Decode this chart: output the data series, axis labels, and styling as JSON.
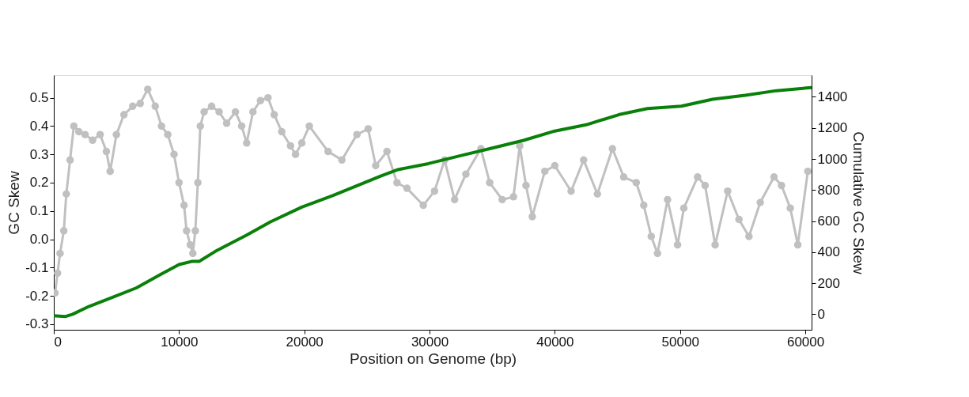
{
  "chart_data": {
    "type": "line",
    "xlabel": "Position on Genome (bp)",
    "ylabel": "GC Skew",
    "y2label": "Cumulative GC Skew",
    "xlim": [
      0,
      60500
    ],
    "xticks": [
      0,
      10000,
      20000,
      30000,
      40000,
      50000,
      60000
    ],
    "ylim": [
      -0.32,
      0.58
    ],
    "yticks": [
      -0.3,
      -0.2,
      -0.1,
      {
        "value": 0,
        "label": "0.0"
      },
      0.1,
      0.2,
      0.3,
      0.4,
      0.5
    ],
    "y2lim": [
      -100,
      1540
    ],
    "y2ticks": [
      0,
      200,
      400,
      600,
      800,
      1000,
      1200,
      1400
    ],
    "grid": false,
    "series": [
      {
        "color": "#c0c0c0",
        "marker": "circle",
        "x": [
          100,
          300,
          500,
          800,
          1000,
          1300,
          1600,
          2000,
          2500,
          3100,
          3700,
          4200,
          4500,
          5000,
          5600,
          6300,
          6900,
          7500,
          8100,
          8600,
          9100,
          9600,
          10000,
          10400,
          10600,
          10900,
          11100,
          11300,
          11500,
          11700,
          12000,
          12600,
          13200,
          13800,
          14500,
          15000,
          15400,
          15900,
          16500,
          17100,
          17600,
          18200,
          18900,
          19300,
          19800,
          20400,
          21900,
          23000,
          24200,
          25100,
          25700,
          26600,
          27400,
          28200,
          29500,
          30400,
          31200,
          32000,
          32900,
          34100,
          34800,
          35800,
          36700,
          37200,
          37700,
          38200,
          39200,
          40000,
          41300,
          42300,
          43400,
          44600,
          45500,
          46500,
          47100,
          47700,
          48200,
          49000,
          49800,
          50300,
          51400,
          52000,
          52800,
          53800,
          54700,
          55500,
          56400,
          57500,
          58100,
          58800,
          59400,
          60200
        ],
        "values": [
          -0.19,
          -0.12,
          -0.05,
          0.03,
          0.16,
          0.28,
          0.4,
          0.38,
          0.37,
          0.35,
          0.37,
          0.31,
          0.24,
          0.37,
          0.44,
          0.47,
          0.48,
          0.53,
          0.47,
          0.4,
          0.37,
          0.3,
          0.2,
          0.12,
          0.03,
          -0.02,
          -0.05,
          0.03,
          0.2,
          0.4,
          0.45,
          0.47,
          0.45,
          0.41,
          0.45,
          0.4,
          0.34,
          0.45,
          0.49,
          0.5,
          0.44,
          0.38,
          0.33,
          0.3,
          0.34,
          0.4,
          0.31,
          0.28,
          0.37,
          0.39,
          0.26,
          0.31,
          0.2,
          0.18,
          0.12,
          0.17,
          0.28,
          0.14,
          0.23,
          0.32,
          0.2,
          0.14,
          0.15,
          0.33,
          0.19,
          0.08,
          0.24,
          0.26,
          0.17,
          0.28,
          0.16,
          0.32,
          0.22,
          0.2,
          0.12,
          0.01,
          -0.05,
          0.14,
          -0.02,
          0.11,
          0.22,
          0.19,
          -0.02,
          0.17,
          0.07,
          0.01,
          0.13,
          0.22,
          0.19,
          0.11,
          -0.02,
          0.24
        ]
      },
      {
        "color": "#0a800a",
        "marker": "none",
        "axis": "y2",
        "x": [
          0,
          900,
          1500,
          2800,
          4700,
          6600,
          8500,
          10000,
          11000,
          11600,
          12900,
          15400,
          17300,
          19800,
          22300,
          24900,
          26100,
          27400,
          29900,
          32400,
          35000,
          37500,
          40000,
          42500,
          45100,
          47400,
          50100,
          52600,
          55200,
          57700,
          60500
        ],
        "values": [
          -10,
          -15,
          0,
          50,
          110,
          170,
          255,
          320,
          340,
          340,
          405,
          510,
          595,
          690,
          765,
          850,
          890,
          930,
          970,
          1020,
          1070,
          1120,
          1180,
          1220,
          1285,
          1325,
          1340,
          1385,
          1410,
          1440,
          1460
        ]
      }
    ]
  }
}
